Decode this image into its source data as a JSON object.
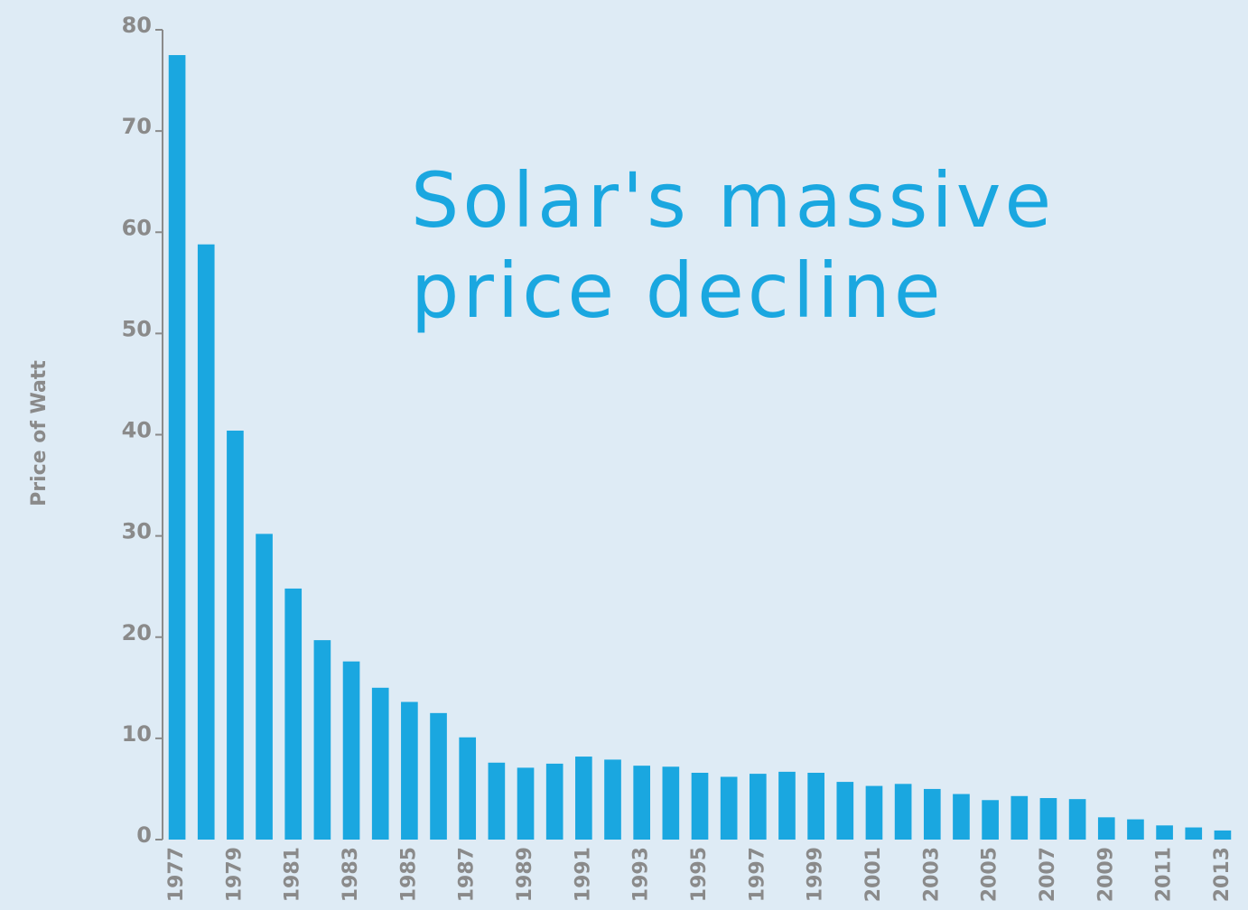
{
  "chart_data": {
    "type": "bar",
    "title": "Solar's massive price decline",
    "y_label": "Price of Watt",
    "categories": [
      "1977",
      null,
      "1979",
      null,
      "1981",
      null,
      "1983",
      null,
      "1985",
      null,
      "1987",
      null,
      "1989",
      null,
      "1991",
      null,
      "1993",
      null,
      "1995",
      null,
      "1997",
      null,
      "1999",
      null,
      "2001",
      null,
      "2003",
      null,
      "2005",
      null,
      "2007",
      null,
      "2009",
      null,
      "2011",
      null,
      "2013"
    ],
    "values": [
      77.5,
      58.8,
      40.4,
      30.2,
      24.8,
      19.7,
      17.6,
      15.0,
      13.6,
      12.5,
      10.1,
      7.6,
      7.1,
      7.5,
      8.2,
      7.9,
      7.3,
      7.2,
      6.6,
      6.2,
      6.5,
      6.7,
      6.6,
      5.7,
      5.3,
      5.5,
      5.0,
      4.5,
      3.9,
      4.3,
      4.1,
      4.0,
      2.2,
      2.0,
      1.4,
      1.2,
      0.9
    ],
    "color": "#1aa7e0",
    "ylim": [
      0,
      80
    ],
    "yticks": [
      0,
      10,
      20,
      30,
      40,
      50,
      60,
      70,
      80
    ],
    "grid": false
  }
}
